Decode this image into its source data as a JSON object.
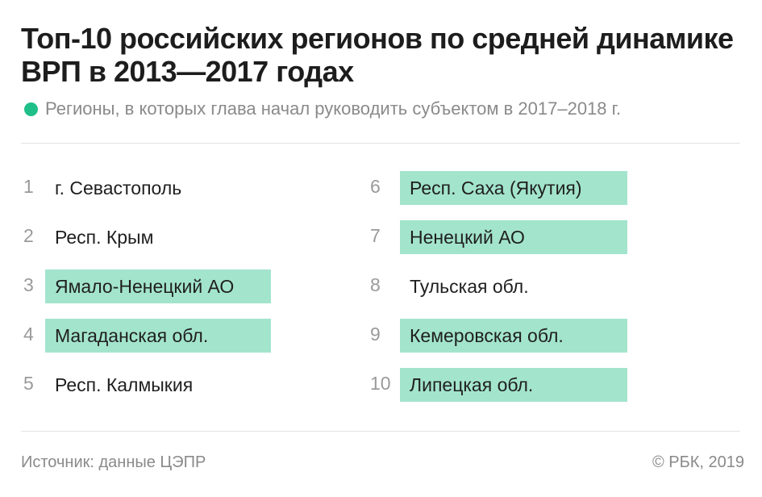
{
  "title": "Топ-10 российских регионов по средней динамике ВРП в 2013—2017 годах",
  "legend": {
    "text": "Регионы, в которых глава начал руководить субъектом в  2017–2018 г.",
    "color": "#1fbf8a"
  },
  "highlight_color": "#a3e4cd",
  "chart_data": {
    "type": "table",
    "title": "Топ-10 российских регионов по средней динамике ВРП в 2013—2017 годах",
    "columns": [
      "rank",
      "region",
      "new_head_2017_2018"
    ],
    "rows": [
      {
        "rank": "1",
        "region": "г. Севастополь",
        "highlighted": false
      },
      {
        "rank": "2",
        "region": "Респ. Крым",
        "highlighted": false
      },
      {
        "rank": "3",
        "region": "Ямало-Ненецкий АО",
        "highlighted": true
      },
      {
        "rank": "4",
        "region": "Магаданская обл.",
        "highlighted": true
      },
      {
        "rank": "5",
        "region": "Респ. Калмыкия",
        "highlighted": false
      },
      {
        "rank": "6",
        "region": "Респ. Саха (Якутия)",
        "highlighted": true
      },
      {
        "rank": "7",
        "region": "Ненецкий АО",
        "highlighted": true
      },
      {
        "rank": "8",
        "region": "Тульская обл.",
        "highlighted": false
      },
      {
        "rank": "9",
        "region": "Кемеровская обл.",
        "highlighted": true
      },
      {
        "rank": "10",
        "region": "Липецкая обл.",
        "highlighted": true
      }
    ]
  },
  "footer": {
    "source": "Источник: данные ЦЭПР",
    "copyright": "© РБК, 2019"
  }
}
